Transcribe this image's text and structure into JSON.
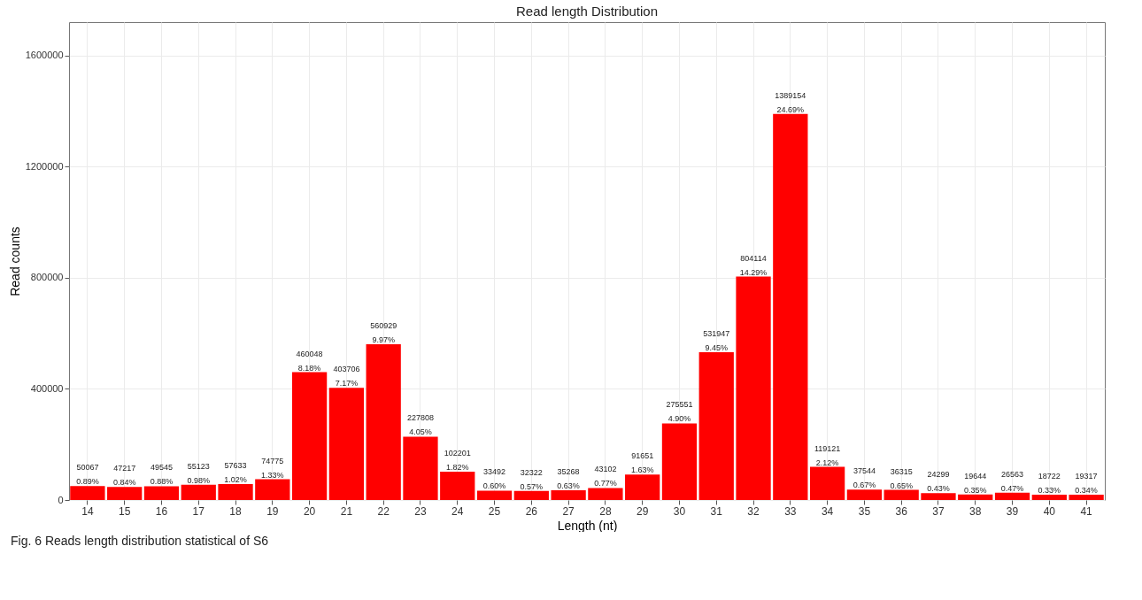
{
  "chart_data": {
    "type": "bar",
    "title": "Read length Distribution",
    "xlabel": "Length (nt)",
    "ylabel": "Read counts",
    "categories": [
      "14",
      "15",
      "16",
      "17",
      "18",
      "19",
      "20",
      "21",
      "22",
      "23",
      "24",
      "25",
      "26",
      "27",
      "28",
      "29",
      "30",
      "31",
      "32",
      "33",
      "34",
      "35",
      "36",
      "37",
      "38",
      "39",
      "40",
      "41"
    ],
    "values": [
      50067,
      47217,
      49545,
      55123,
      57633,
      74775,
      460048,
      403706,
      560929,
      227808,
      102201,
      33492,
      32322,
      35268,
      43102,
      91651,
      275551,
      531947,
      804114,
      1389154,
      119121,
      37544,
      36315,
      24299,
      19644,
      26563,
      18722,
      19317
    ],
    "value_labels": [
      "50067\n0.89%",
      "47217\n0.84%",
      "49545\n0.88%",
      "55123\n0.98%",
      "57633\n1.02%",
      "74775\n1.33%",
      "460048\n8.18%",
      "403706\n7.17%",
      "560929\n9.97%",
      "227808\n4.05%",
      "102201\n1.82%",
      "33492\n0.60%",
      "32322\n0.57%",
      "35268\n0.63%",
      "43102\n0.77%",
      "91651\n1.63%",
      "275551\n4.90%",
      "531947\n9.45%",
      "804114\n14.29%",
      "1389154\n24.69%",
      "119121\n2.12%",
      "37544\n0.67%",
      "36315\n0.65%",
      "24299\n0.43%",
      "19644\n0.35%",
      "26563\n0.47%",
      "18722\n0.33%",
      "19317\n0.34%"
    ],
    "color": "#ff0000",
    "ylim": [
      0,
      1720000
    ],
    "yticks": [
      0,
      400000,
      800000,
      1200000,
      1600000
    ],
    "grid": true,
    "annotations": [
      "Fig. 6 Reads length distribution statistical of S6"
    ]
  }
}
